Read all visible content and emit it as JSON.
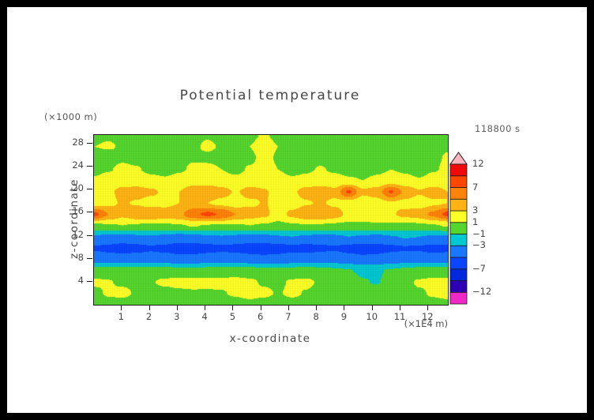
{
  "title": "Potential temperature",
  "timestamp": "118800 s",
  "axes": {
    "x_title": "x-coordinate",
    "y_title": "z-coordinate",
    "x_unit": "(×1E4 m)",
    "y_unit": "(×1000 m)",
    "x_ticks": [
      {
        "text": "1",
        "value": 1
      },
      {
        "text": "2",
        "value": 2
      },
      {
        "text": "3",
        "value": 3
      },
      {
        "text": "4",
        "value": 4
      },
      {
        "text": "5",
        "value": 5
      },
      {
        "text": "6",
        "value": 6
      },
      {
        "text": "7",
        "value": 7
      },
      {
        "text": "8",
        "value": 8
      },
      {
        "text": "9",
        "value": 9
      },
      {
        "text": "10",
        "value": 10
      },
      {
        "text": "11",
        "value": 11
      },
      {
        "text": "12",
        "value": 12
      }
    ],
    "y_ticks": [
      {
        "text": "4",
        "value": 4
      },
      {
        "text": "8",
        "value": 8
      },
      {
        "text": "12",
        "value": 12
      },
      {
        "text": "16",
        "value": 16
      },
      {
        "text": "20",
        "value": 20
      },
      {
        "text": "24",
        "value": 24
      },
      {
        "text": "28",
        "value": 28
      }
    ]
  },
  "colorbar": {
    "tick_labels": [
      {
        "text": "12",
        "value": 12
      },
      {
        "text": "7",
        "value": 7
      },
      {
        "text": "3",
        "value": 3
      },
      {
        "text": "1",
        "value": 1
      },
      {
        "text": "−1",
        "value": -1
      },
      {
        "text": "−3",
        "value": -3
      },
      {
        "text": "−7",
        "value": -7
      },
      {
        "text": "−12",
        "value": -12
      }
    ]
  },
  "chart_data": {
    "type": "heatmap",
    "title": "Potential temperature",
    "subtitle_time": "118800 s",
    "xlabel": "x-coordinate (×1E4 m)",
    "ylabel": "z-coordinate (×1000 m)",
    "x_range": [
      0,
      12.7
    ],
    "z_range": [
      0,
      29.5
    ],
    "legend_position": "right",
    "levels": [
      -12,
      -10,
      -7,
      -5,
      -3,
      -1,
      1,
      3,
      5,
      7,
      10,
      12
    ],
    "level_colors": [
      "#f028c8",
      "#2d00b4",
      "#0028dc",
      "#0a46ff",
      "#1a78ff",
      "#00c8d2",
      "#55d62e",
      "#ffff28",
      "#ffb414",
      "#ff820a",
      "#ff4600",
      "#f00a0a",
      "#ffb4be"
    ],
    "grid": {
      "rows": 16,
      "cols": 26,
      "row_order": "bottom-to-top, rows equally spaced over z_range",
      "col_order": "left-to-right, cols equally spaced over x_range",
      "values": [
        [
          0.3,
          0.4,
          0.3,
          0.2,
          0.3,
          0.4,
          0.5,
          0.4,
          0.3,
          0.3,
          0.4,
          0.5,
          0.4,
          0.3,
          0.4,
          0.5,
          0.4,
          0.3,
          0.2,
          0.3,
          0.4,
          0.3,
          0.2,
          0.3,
          0.5,
          0.6
        ],
        [
          0.6,
          1.2,
          1.4,
          0.8,
          0.5,
          0.5,
          0.7,
          0.8,
          0.8,
          0.9,
          1.2,
          1.6,
          1.3,
          0.9,
          1.3,
          0.9,
          0.6,
          0.4,
          0.2,
          -0.5,
          -0.3,
          0.3,
          0.5,
          0.8,
          1.2,
          1.5
        ],
        [
          1.3,
          1.1,
          0.7,
          0.6,
          0.9,
          1.3,
          1.5,
          1.6,
          1.5,
          1.4,
          1.5,
          1.3,
          0.8,
          0.7,
          1.2,
          1.3,
          0.8,
          0.5,
          0.0,
          -0.9,
          -1.1,
          -0.4,
          0.6,
          1.2,
          1.4,
          1.3
        ],
        [
          -0.2,
          -0.1,
          0.0,
          0.2,
          0.1,
          -0.1,
          -0.2,
          -0.3,
          -0.2,
          0.0,
          0.1,
          -0.1,
          -0.3,
          -0.4,
          -0.2,
          -0.1,
          -0.3,
          -0.6,
          -0.9,
          -1.3,
          -1.2,
          -0.8,
          -0.5,
          -0.2,
          0.0,
          0.2
        ],
        [
          -3.8,
          -4.0,
          -4.2,
          -4.0,
          -3.9,
          -4.1,
          -4.3,
          -4.2,
          -4.0,
          -3.9,
          -4.0,
          -4.2,
          -4.4,
          -4.3,
          -4.1,
          -4.0,
          -3.8,
          -3.9,
          -4.2,
          -4.5,
          -4.4,
          -4.1,
          -3.9,
          -3.8,
          -4.0,
          -4.1
        ],
        [
          -5.2,
          -5.5,
          -5.8,
          -5.6,
          -5.3,
          -5.5,
          -5.9,
          -6.0,
          -5.7,
          -5.4,
          -5.6,
          -5.9,
          -6.1,
          -5.8,
          -5.5,
          -5.7,
          -5.4,
          -5.2,
          -5.6,
          -5.9,
          -5.7,
          -5.4,
          -5.2,
          -5.3,
          -5.6,
          -5.4
        ],
        [
          -3.2,
          -3.4,
          -3.6,
          -3.3,
          -3.1,
          -3.4,
          -3.7,
          -3.5,
          -3.2,
          -3.1,
          -3.3,
          -3.6,
          -3.4,
          -3.1,
          -3.0,
          -3.2,
          -3.5,
          -3.3,
          -3.0,
          -3.2,
          -3.4,
          -3.1,
          -2.9,
          -3.0,
          -3.2,
          -3.3
        ],
        [
          0.5,
          0.8,
          1.0,
          0.8,
          0.6,
          0.7,
          0.9,
          1.1,
          0.9,
          0.7,
          0.8,
          1.0,
          0.8,
          0.5,
          0.7,
          0.9,
          0.8,
          0.6,
          0.5,
          0.6,
          0.8,
          0.7,
          0.5,
          0.6,
          0.9,
          1.1
        ],
        [
          7.5,
          5.0,
          3.5,
          4.5,
          5.0,
          4.0,
          4.5,
          6.5,
          7.5,
          6.8,
          5.0,
          4.0,
          3.5,
          2.0,
          3.5,
          4.5,
          4.8,
          4.0,
          2.5,
          2.0,
          2.2,
          2.8,
          3.5,
          4.0,
          5.5,
          7.6
        ],
        [
          2.0,
          2.5,
          3.2,
          2.8,
          2.2,
          2.5,
          3.0,
          3.4,
          3.0,
          2.4,
          2.0,
          2.6,
          3.1,
          2.5,
          2.0,
          2.8,
          3.2,
          2.6,
          2.0,
          1.8,
          2.2,
          2.8,
          2.4,
          2.0,
          2.6,
          3.0
        ],
        [
          1.8,
          2.6,
          3.6,
          3.9,
          3.4,
          2.6,
          3.0,
          4.2,
          4.8,
          3.8,
          2.8,
          3.8,
          3.2,
          2.4,
          2.6,
          3.9,
          4.3,
          3.6,
          7.4,
          3.4,
          4.0,
          7.2,
          4.6,
          3.2,
          4.0,
          3.0
        ],
        [
          1.2,
          1.6,
          2.0,
          1.8,
          1.4,
          1.2,
          1.6,
          2.1,
          1.9,
          1.5,
          1.3,
          1.7,
          2.0,
          1.6,
          1.2,
          1.4,
          1.8,
          1.5,
          1.2,
          1.0,
          1.3,
          1.7,
          1.4,
          1.1,
          1.5,
          1.8
        ],
        [
          0.6,
          0.9,
          1.3,
          1.1,
          0.7,
          0.5,
          0.8,
          1.2,
          1.4,
          1.0,
          0.7,
          1.1,
          1.4,
          1.0,
          0.6,
          0.8,
          1.1,
          0.8,
          0.5,
          0.4,
          0.7,
          1.0,
          0.8,
          0.5,
          0.9,
          1.2
        ],
        [
          0.3,
          0.5,
          0.8,
          0.6,
          0.4,
          0.3,
          0.6,
          0.9,
          0.7,
          0.5,
          0.4,
          0.8,
          1.3,
          0.9,
          0.5,
          0.4,
          0.6,
          0.5,
          0.3,
          0.2,
          0.4,
          0.6,
          0.5,
          0.3,
          0.8,
          1.1
        ],
        [
          1.0,
          1.1,
          0.9,
          0.7,
          0.4,
          0.3,
          0.5,
          0.8,
          1.2,
          0.9,
          0.6,
          1.0,
          1.4,
          1.0,
          0.5,
          0.3,
          0.4,
          0.3,
          0.2,
          0.3,
          0.5,
          0.4,
          0.3,
          0.4,
          0.7,
          0.9
        ],
        [
          0.8,
          0.9,
          0.7,
          0.5,
          0.3,
          0.3,
          0.4,
          0.6,
          0.9,
          0.7,
          0.5,
          0.8,
          1.1,
          0.8,
          0.4,
          0.3,
          0.3,
          0.2,
          0.2,
          0.3,
          0.4,
          0.3,
          0.3,
          0.3,
          0.5,
          0.7
        ]
      ]
    }
  }
}
